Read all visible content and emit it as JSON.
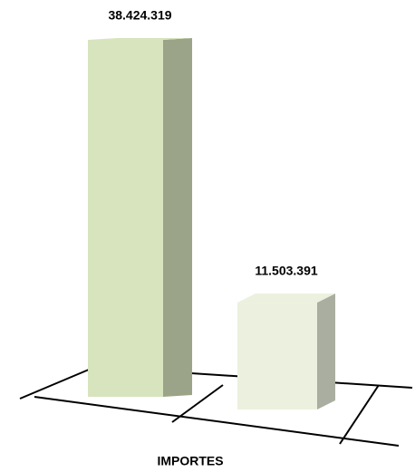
{
  "chart_data": {
    "type": "bar3d",
    "categories": [
      null,
      null
    ],
    "values": [
      38424319,
      11503391
    ],
    "value_labels": [
      "38.424.319",
      "11.503.391"
    ],
    "colors": [
      "#d7e4bd",
      "#ebf1de"
    ],
    "xlabel": "IMPORTES"
  }
}
